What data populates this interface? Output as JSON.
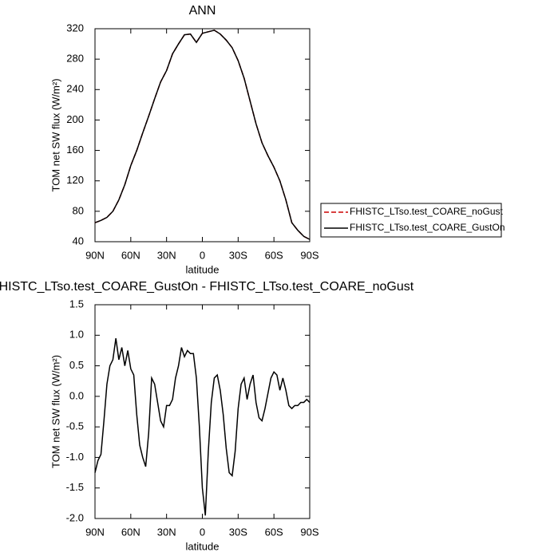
{
  "chart_data": [
    {
      "type": "line",
      "title": "ANN",
      "xlabel": "latitude",
      "ylabel": "TOM net SW flux (W/m²)",
      "x": [
        90,
        85,
        80,
        75,
        70,
        65,
        60,
        55,
        50,
        45,
        40,
        35,
        30,
        25,
        20,
        15,
        10,
        5,
        0,
        -5,
        -10,
        -15,
        -20,
        -25,
        -30,
        -35,
        -40,
        -45,
        -50,
        -55,
        -60,
        -65,
        -70,
        -75,
        -80,
        -85,
        -90
      ],
      "series": [
        {
          "name": "FHISTC_LTso.test_COARE_noGust",
          "color": "#cc0000",
          "line_style": "dashed",
          "values": [
            65,
            68,
            72,
            80,
            95,
            115,
            140,
            160,
            183,
            205,
            228,
            250,
            265,
            287,
            300,
            312,
            313,
            302,
            314,
            316,
            318,
            313,
            305,
            295,
            278,
            255,
            225,
            195,
            170,
            153,
            138,
            120,
            95,
            65,
            55,
            47,
            43
          ]
        },
        {
          "name": "FHISTC_LTso.test_COARE_GustOn",
          "color": "#000000",
          "line_style": "solid",
          "values": [
            65,
            68,
            72,
            80,
            95,
            115,
            140,
            160,
            183,
            205,
            228,
            250,
            265,
            287,
            300,
            312,
            313,
            302,
            314,
            316,
            318,
            313,
            305,
            295,
            278,
            255,
            225,
            195,
            170,
            153,
            138,
            120,
            95,
            65,
            55,
            47,
            43
          ]
        }
      ],
      "xlim": [
        90,
        -90
      ],
      "xticks": [
        {
          "value": 90,
          "label": "90N"
        },
        {
          "value": 60,
          "label": "60N"
        },
        {
          "value": 30,
          "label": "30N"
        },
        0,
        {
          "value": -30,
          "label": "30S"
        },
        {
          "value": -60,
          "label": "60S"
        },
        {
          "value": -90,
          "label": "90S"
        }
      ],
      "ylim": [
        40,
        320
      ],
      "yticks": [
        40,
        80,
        120,
        160,
        200,
        240,
        280,
        320
      ],
      "legend": "right"
    },
    {
      "type": "line",
      "title": "FHISTC_LTso.test_COARE_GustOn - FHISTC_LTso.test_COARE_noGust",
      "xlabel": "latitude",
      "ylabel": "TOM net SW flux (W/m²)",
      "x": [
        90,
        87.5,
        85,
        82.5,
        80,
        77.5,
        75,
        72.5,
        70,
        67.5,
        65,
        62.5,
        60,
        57.5,
        55,
        52.5,
        50,
        47.5,
        45,
        42.5,
        40,
        37.5,
        35,
        32.5,
        30,
        27.5,
        25,
        22.5,
        20,
        17.5,
        15,
        12.5,
        10,
        7.5,
        5,
        2.5,
        0,
        -2.5,
        -5,
        -7.5,
        -10,
        -12.5,
        -15,
        -17.5,
        -20,
        -22.5,
        -25,
        -27.5,
        -30,
        -32.5,
        -35,
        -37.5,
        -40,
        -42.5,
        -45,
        -47.5,
        -50,
        -52.5,
        -55,
        -57.5,
        -60,
        -62.5,
        -65,
        -67.5,
        -70,
        -72.5,
        -75,
        -77.5,
        -80,
        -82.5,
        -85,
        -87.5,
        -90
      ],
      "series": [
        {
          "color": "#000000",
          "line_style": "solid",
          "values": [
            -1.25,
            -1.05,
            -0.95,
            -0.4,
            0.2,
            0.5,
            0.6,
            0.95,
            0.6,
            0.8,
            0.5,
            0.75,
            0.45,
            0.35,
            -0.3,
            -0.8,
            -1.0,
            -1.15,
            -0.6,
            0.3,
            0.2,
            -0.1,
            -0.4,
            -0.5,
            -0.15,
            -0.15,
            -0.05,
            0.3,
            0.5,
            0.8,
            0.65,
            0.75,
            0.7,
            0.7,
            0.3,
            -0.5,
            -1.5,
            -1.95,
            -0.9,
            -0.1,
            0.3,
            0.35,
            0.1,
            -0.3,
            -0.85,
            -1.25,
            -1.3,
            -0.9,
            -0.2,
            0.2,
            0.3,
            -0.05,
            0.2,
            0.35,
            -0.1,
            -0.35,
            -0.4,
            -0.2,
            0.05,
            0.3,
            0.4,
            0.35,
            0.1,
            0.3,
            0.1,
            -0.15,
            -0.2,
            -0.15,
            -0.15,
            -0.1,
            -0.1,
            -0.05,
            -0.1
          ]
        }
      ],
      "xlim": [
        90,
        -90
      ],
      "xticks": [
        {
          "value": 90,
          "label": "90N"
        },
        {
          "value": 60,
          "label": "60N"
        },
        {
          "value": 30,
          "label": "30N"
        },
        0,
        {
          "value": -30,
          "label": "30S"
        },
        {
          "value": -60,
          "label": "60S"
        },
        {
          "value": -90,
          "label": "90S"
        }
      ],
      "ylim": [
        -2,
        1.5
      ],
      "yticks": [
        {
          "value": -2,
          "label": "-2.0"
        },
        -1.5,
        {
          "value": -1,
          "label": "-1.0"
        },
        -0.5,
        {
          "value": 0,
          "label": "0.0"
        },
        0.5,
        {
          "value": 1,
          "label": "1.0"
        },
        1.5
      ]
    }
  ]
}
